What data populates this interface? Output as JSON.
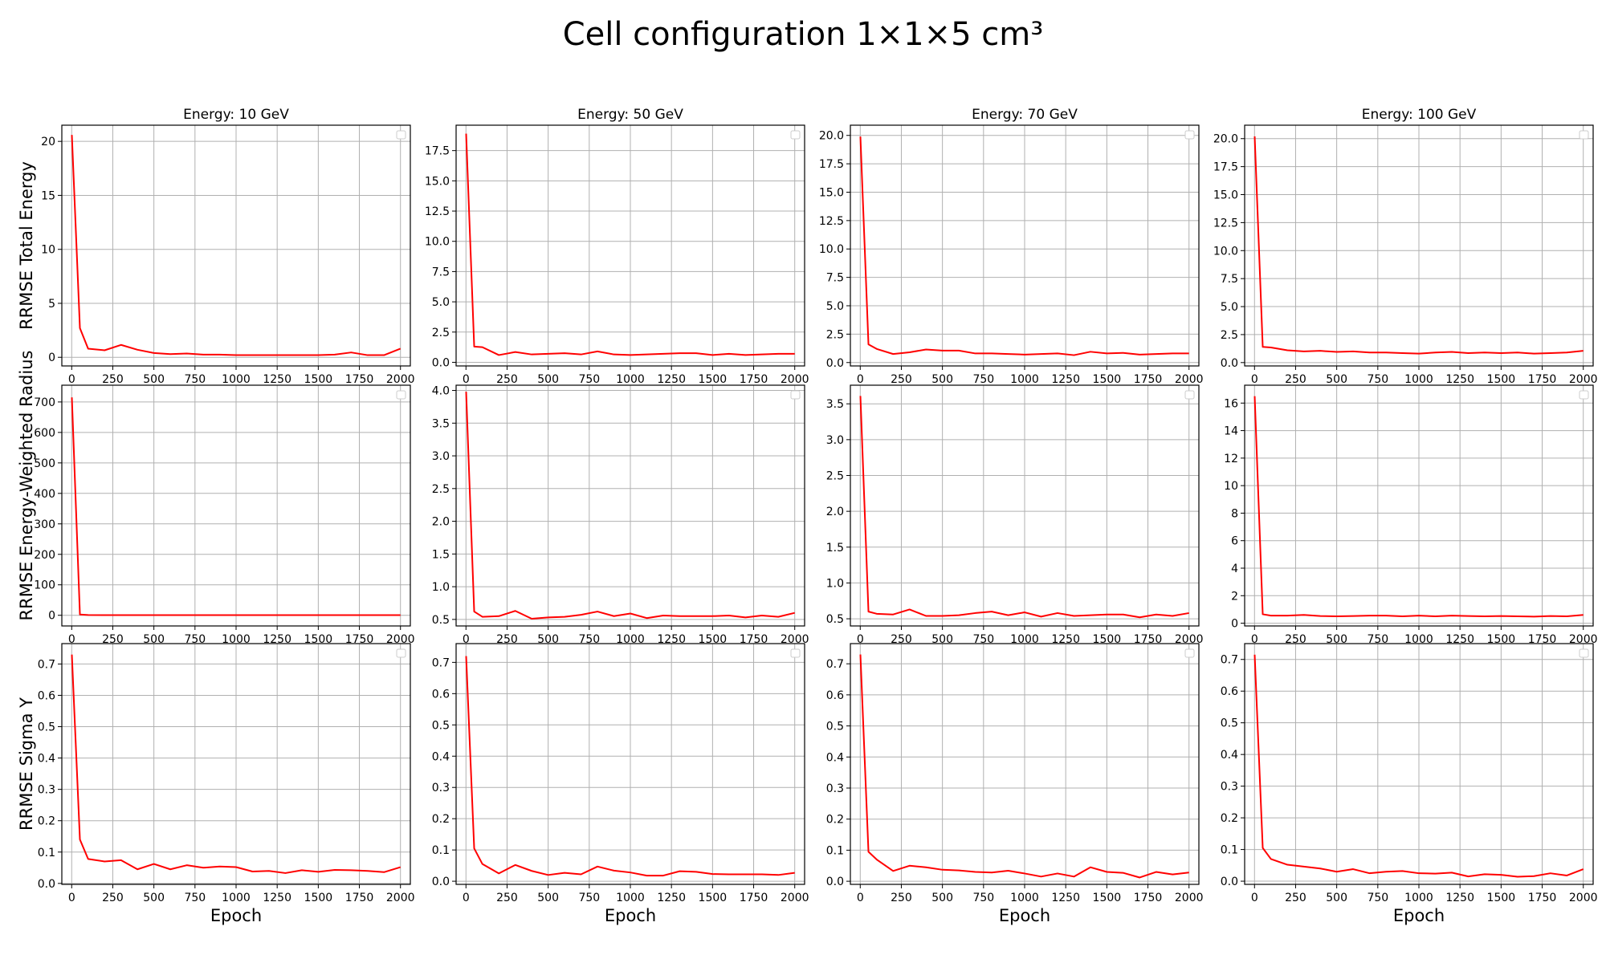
{
  "figure": {
    "title": "Cell configuration 1×1×5 cm³"
  },
  "chart_data": [
    {
      "type": "line",
      "title": "Energy: 10 GeV",
      "ylabel": "RRMSE Total Energy",
      "xlabel": "",
      "xlim": [
        -60,
        2060
      ],
      "ylim": [
        -0.8,
        21.5
      ],
      "yticks": [
        0,
        5,
        10,
        15,
        20
      ],
      "yticklabels": [
        "0",
        "5",
        "10",
        "15",
        "20"
      ],
      "xticks": [
        0,
        250,
        500,
        750,
        1000,
        1250,
        1500,
        1750,
        2000
      ],
      "series": [
        {
          "color": "#ff0000",
          "x": [
            1,
            50,
            100,
            200,
            300,
            400,
            500,
            600,
            700,
            800,
            900,
            1000,
            1100,
            1200,
            1300,
            1400,
            1500,
            1600,
            1700,
            1800,
            1900,
            2000
          ],
          "y": [
            20.6,
            2.7,
            0.8,
            0.65,
            1.15,
            0.7,
            0.4,
            0.3,
            0.35,
            0.25,
            0.25,
            0.2,
            0.2,
            0.2,
            0.2,
            0.2,
            0.2,
            0.25,
            0.45,
            0.2,
            0.2,
            0.8
          ]
        }
      ]
    },
    {
      "type": "line",
      "title": "Energy: 50 GeV",
      "ylabel": "",
      "xlabel": "",
      "xlim": [
        -60,
        2060
      ],
      "ylim": [
        -0.3,
        19.6
      ],
      "yticks": [
        0,
        2.5,
        5,
        7.5,
        10,
        12.5,
        15,
        17.5
      ],
      "yticklabels": [
        "0.0",
        "2.5",
        "5.0",
        "7.5",
        "10.0",
        "12.5",
        "15.0",
        "17.5"
      ],
      "xticks": [
        0,
        250,
        500,
        750,
        1000,
        1250,
        1500,
        1750,
        2000
      ],
      "series": [
        {
          "color": "#ff0000",
          "x": [
            1,
            50,
            100,
            200,
            300,
            400,
            500,
            600,
            700,
            800,
            900,
            1000,
            1100,
            1200,
            1300,
            1400,
            1500,
            1600,
            1700,
            1800,
            1900,
            2000
          ],
          "y": [
            18.9,
            1.3,
            1.25,
            0.6,
            0.85,
            0.65,
            0.7,
            0.75,
            0.65,
            0.9,
            0.65,
            0.6,
            0.65,
            0.7,
            0.75,
            0.75,
            0.6,
            0.7,
            0.6,
            0.65,
            0.7,
            0.7
          ]
        }
      ]
    },
    {
      "type": "line",
      "title": "Energy: 70 GeV",
      "ylabel": "",
      "xlabel": "",
      "xlim": [
        -60,
        2060
      ],
      "ylim": [
        -0.3,
        20.9
      ],
      "yticks": [
        0,
        2.5,
        5,
        7.5,
        10,
        12.5,
        15,
        17.5,
        20
      ],
      "yticklabels": [
        "0.0",
        "2.5",
        "5.0",
        "7.5",
        "10.0",
        "12.5",
        "15.0",
        "17.5",
        "20.0"
      ],
      "xticks": [
        0,
        250,
        500,
        750,
        1000,
        1250,
        1500,
        1750,
        2000
      ],
      "series": [
        {
          "color": "#ff0000",
          "x": [
            1,
            50,
            100,
            200,
            300,
            400,
            500,
            600,
            700,
            800,
            900,
            1000,
            1100,
            1200,
            1300,
            1400,
            1500,
            1600,
            1700,
            1800,
            1900,
            2000
          ],
          "y": [
            19.9,
            1.6,
            1.2,
            0.75,
            0.9,
            1.15,
            1.05,
            1.05,
            0.8,
            0.8,
            0.75,
            0.7,
            0.75,
            0.8,
            0.65,
            0.95,
            0.8,
            0.85,
            0.7,
            0.75,
            0.8,
            0.8
          ]
        }
      ]
    },
    {
      "type": "line",
      "title": "Energy: 100 GeV",
      "ylabel": "",
      "xlabel": "",
      "xlim": [
        -60,
        2060
      ],
      "ylim": [
        -0.3,
        21.2
      ],
      "yticks": [
        0,
        2.5,
        5,
        7.5,
        10,
        12.5,
        15,
        17.5,
        20
      ],
      "yticklabels": [
        "0.0",
        "2.5",
        "5.0",
        "7.5",
        "10.0",
        "12.5",
        "15.0",
        "17.5",
        "20.0"
      ],
      "xticks": [
        0,
        250,
        500,
        750,
        1000,
        1250,
        1500,
        1750,
        2000
      ],
      "series": [
        {
          "color": "#ff0000",
          "x": [
            1,
            50,
            100,
            200,
            300,
            400,
            500,
            600,
            700,
            800,
            900,
            1000,
            1100,
            1200,
            1300,
            1400,
            1500,
            1600,
            1700,
            1800,
            1900,
            2000
          ],
          "y": [
            20.2,
            1.4,
            1.35,
            1.1,
            1.0,
            1.05,
            0.95,
            1.0,
            0.9,
            0.9,
            0.85,
            0.8,
            0.9,
            0.95,
            0.85,
            0.9,
            0.85,
            0.9,
            0.8,
            0.85,
            0.9,
            1.05
          ]
        }
      ]
    },
    {
      "type": "line",
      "title": "",
      "ylabel": "RRMSE Energy-Weighted Radius",
      "xlabel": "",
      "xlim": [
        -60,
        2060
      ],
      "ylim": [
        -35,
        755
      ],
      "yticks": [
        0,
        100,
        200,
        300,
        400,
        500,
        600,
        700
      ],
      "yticklabels": [
        "0",
        "100",
        "200",
        "300",
        "400",
        "500",
        "600",
        "700"
      ],
      "xticks": [
        0,
        250,
        500,
        750,
        1000,
        1250,
        1500,
        1750,
        2000
      ],
      "series": [
        {
          "color": "#ff0000",
          "x": [
            1,
            50,
            100,
            200,
            300,
            400,
            500,
            600,
            700,
            800,
            900,
            1000,
            1100,
            1200,
            1300,
            1400,
            1500,
            1600,
            1700,
            1800,
            1900,
            2000
          ],
          "y": [
            715,
            2.5,
            0.8,
            0.6,
            0.6,
            0.6,
            0.55,
            0.55,
            0.55,
            0.55,
            0.55,
            0.55,
            0.55,
            0.55,
            0.55,
            0.55,
            0.55,
            0.55,
            0.55,
            0.55,
            0.55,
            0.6
          ]
        }
      ]
    },
    {
      "type": "line",
      "title": "",
      "ylabel": "",
      "xlabel": "",
      "xlim": [
        -60,
        2060
      ],
      "ylim": [
        0.4,
        4.08
      ],
      "yticks": [
        0.5,
        1.0,
        1.5,
        2.0,
        2.5,
        3.0,
        3.5,
        4.0
      ],
      "yticklabels": [
        "0.5",
        "1.0",
        "1.5",
        "2.0",
        "2.5",
        "3.0",
        "3.5",
        "4.0"
      ],
      "xticks": [
        0,
        250,
        500,
        750,
        1000,
        1250,
        1500,
        1750,
        2000
      ],
      "series": [
        {
          "color": "#ff0000",
          "x": [
            1,
            50,
            100,
            200,
            300,
            400,
            500,
            600,
            700,
            800,
            900,
            1000,
            1100,
            1200,
            1300,
            1400,
            1500,
            1600,
            1700,
            1800,
            1900,
            2000
          ],
          "y": [
            3.98,
            0.62,
            0.54,
            0.55,
            0.63,
            0.51,
            0.53,
            0.54,
            0.57,
            0.62,
            0.55,
            0.59,
            0.52,
            0.56,
            0.55,
            0.55,
            0.55,
            0.56,
            0.53,
            0.56,
            0.54,
            0.6
          ]
        }
      ]
    },
    {
      "type": "line",
      "title": "",
      "ylabel": "",
      "xlabel": "",
      "xlim": [
        -60,
        2060
      ],
      "ylim": [
        0.4,
        3.76
      ],
      "yticks": [
        0.5,
        1.0,
        1.5,
        2.0,
        2.5,
        3.0,
        3.5
      ],
      "yticklabels": [
        "0.5",
        "1.0",
        "1.5",
        "2.0",
        "2.5",
        "3.0",
        "3.5"
      ],
      "xticks": [
        0,
        250,
        500,
        750,
        1000,
        1250,
        1500,
        1750,
        2000
      ],
      "series": [
        {
          "color": "#ff0000",
          "x": [
            1,
            50,
            100,
            200,
            300,
            400,
            500,
            600,
            700,
            800,
            900,
            1000,
            1100,
            1200,
            1300,
            1400,
            1500,
            1600,
            1700,
            1800,
            1900,
            2000
          ],
          "y": [
            3.61,
            0.6,
            0.57,
            0.56,
            0.63,
            0.54,
            0.54,
            0.55,
            0.58,
            0.6,
            0.55,
            0.59,
            0.53,
            0.58,
            0.54,
            0.55,
            0.56,
            0.56,
            0.52,
            0.56,
            0.54,
            0.58
          ]
        }
      ]
    },
    {
      "type": "line",
      "title": "",
      "ylabel": "",
      "xlabel": "",
      "xlim": [
        -60,
        2060
      ],
      "ylim": [
        -0.2,
        17.3
      ],
      "yticks": [
        0,
        2,
        4,
        6,
        8,
        10,
        12,
        14,
        16
      ],
      "yticklabels": [
        "0",
        "2",
        "4",
        "6",
        "8",
        "10",
        "12",
        "14",
        "16"
      ],
      "xticks": [
        0,
        250,
        500,
        750,
        1000,
        1250,
        1500,
        1750,
        2000
      ],
      "series": [
        {
          "color": "#ff0000",
          "x": [
            1,
            50,
            100,
            200,
            300,
            400,
            500,
            600,
            700,
            800,
            900,
            1000,
            1100,
            1200,
            1300,
            1400,
            1500,
            1600,
            1700,
            1800,
            1900,
            2000
          ],
          "y": [
            16.5,
            0.65,
            0.55,
            0.55,
            0.6,
            0.52,
            0.5,
            0.52,
            0.55,
            0.55,
            0.5,
            0.55,
            0.5,
            0.55,
            0.52,
            0.5,
            0.52,
            0.5,
            0.48,
            0.52,
            0.5,
            0.6
          ]
        }
      ]
    },
    {
      "type": "line",
      "title": "",
      "ylabel": "RRMSE Sigma Y",
      "xlabel": "Epoch",
      "xlim": [
        -60,
        2060
      ],
      "ylim": [
        -0.003,
        0.765
      ],
      "yticks": [
        0,
        0.1,
        0.2,
        0.3,
        0.4,
        0.5,
        0.6,
        0.7
      ],
      "yticklabels": [
        "0.0",
        "0.1",
        "0.2",
        "0.3",
        "0.4",
        "0.5",
        "0.6",
        "0.7"
      ],
      "xticks": [
        0,
        250,
        500,
        750,
        1000,
        1250,
        1500,
        1750,
        2000
      ],
      "series": [
        {
          "color": "#ff0000",
          "x": [
            1,
            50,
            100,
            200,
            300,
            400,
            500,
            600,
            700,
            800,
            900,
            1000,
            1100,
            1200,
            1300,
            1400,
            1500,
            1600,
            1700,
            1800,
            1900,
            2000
          ],
          "y": [
            0.73,
            0.14,
            0.078,
            0.07,
            0.074,
            0.045,
            0.062,
            0.045,
            0.058,
            0.05,
            0.054,
            0.052,
            0.038,
            0.04,
            0.033,
            0.042,
            0.037,
            0.043,
            0.042,
            0.04,
            0.036,
            0.052
          ]
        }
      ]
    },
    {
      "type": "line",
      "title": "",
      "ylabel": "",
      "xlabel": "Epoch",
      "xlim": [
        -60,
        2060
      ],
      "ylim": [
        -0.01,
        0.76
      ],
      "yticks": [
        0,
        0.1,
        0.2,
        0.3,
        0.4,
        0.5,
        0.6,
        0.7
      ],
      "yticklabels": [
        "0.0",
        "0.1",
        "0.2",
        "0.3",
        "0.4",
        "0.5",
        "0.6",
        "0.7"
      ],
      "xticks": [
        0,
        250,
        500,
        750,
        1000,
        1250,
        1500,
        1750,
        2000
      ],
      "series": [
        {
          "color": "#ff0000",
          "x": [
            1,
            50,
            100,
            200,
            300,
            400,
            500,
            600,
            700,
            800,
            900,
            1000,
            1100,
            1200,
            1300,
            1400,
            1500,
            1600,
            1700,
            1800,
            1900,
            2000
          ],
          "y": [
            0.72,
            0.105,
            0.055,
            0.025,
            0.052,
            0.033,
            0.02,
            0.027,
            0.022,
            0.047,
            0.034,
            0.028,
            0.018,
            0.018,
            0.032,
            0.03,
            0.023,
            0.022,
            0.022,
            0.022,
            0.02,
            0.027
          ]
        }
      ]
    },
    {
      "type": "line",
      "title": "",
      "ylabel": "",
      "xlabel": "Epoch",
      "xlim": [
        -60,
        2060
      ],
      "ylim": [
        -0.01,
        0.765
      ],
      "yticks": [
        0,
        0.1,
        0.2,
        0.3,
        0.4,
        0.5,
        0.6,
        0.7
      ],
      "yticklabels": [
        "0.0",
        "0.1",
        "0.2",
        "0.3",
        "0.4",
        "0.5",
        "0.6",
        "0.7"
      ],
      "xticks": [
        0,
        250,
        500,
        750,
        1000,
        1250,
        1500,
        1750,
        2000
      ],
      "series": [
        {
          "color": "#ff0000",
          "x": [
            1,
            50,
            100,
            200,
            300,
            400,
            500,
            600,
            700,
            800,
            900,
            1000,
            1100,
            1200,
            1300,
            1400,
            1500,
            1600,
            1700,
            1800,
            1900,
            2000
          ],
          "y": [
            0.73,
            0.095,
            0.07,
            0.033,
            0.05,
            0.045,
            0.037,
            0.035,
            0.03,
            0.028,
            0.034,
            0.025,
            0.015,
            0.025,
            0.015,
            0.045,
            0.03,
            0.027,
            0.012,
            0.03,
            0.022,
            0.028
          ]
        }
      ]
    },
    {
      "type": "line",
      "title": "",
      "ylabel": "",
      "xlabel": "Epoch",
      "xlim": [
        -60,
        2060
      ],
      "ylim": [
        -0.01,
        0.75
      ],
      "yticks": [
        0,
        0.1,
        0.2,
        0.3,
        0.4,
        0.5,
        0.6,
        0.7
      ],
      "yticklabels": [
        "0.0",
        "0.1",
        "0.2",
        "0.3",
        "0.4",
        "0.5",
        "0.6",
        "0.7"
      ],
      "xticks": [
        0,
        250,
        500,
        750,
        1000,
        1250,
        1500,
        1750,
        2000
      ],
      "series": [
        {
          "color": "#ff0000",
          "x": [
            1,
            50,
            100,
            200,
            300,
            400,
            500,
            600,
            700,
            800,
            900,
            1000,
            1100,
            1200,
            1300,
            1400,
            1500,
            1600,
            1700,
            1800,
            1900,
            2000
          ],
          "y": [
            0.715,
            0.105,
            0.07,
            0.052,
            0.046,
            0.04,
            0.03,
            0.038,
            0.025,
            0.03,
            0.032,
            0.025,
            0.024,
            0.027,
            0.015,
            0.022,
            0.02,
            0.014,
            0.016,
            0.025,
            0.018,
            0.038
          ]
        }
      ]
    }
  ]
}
